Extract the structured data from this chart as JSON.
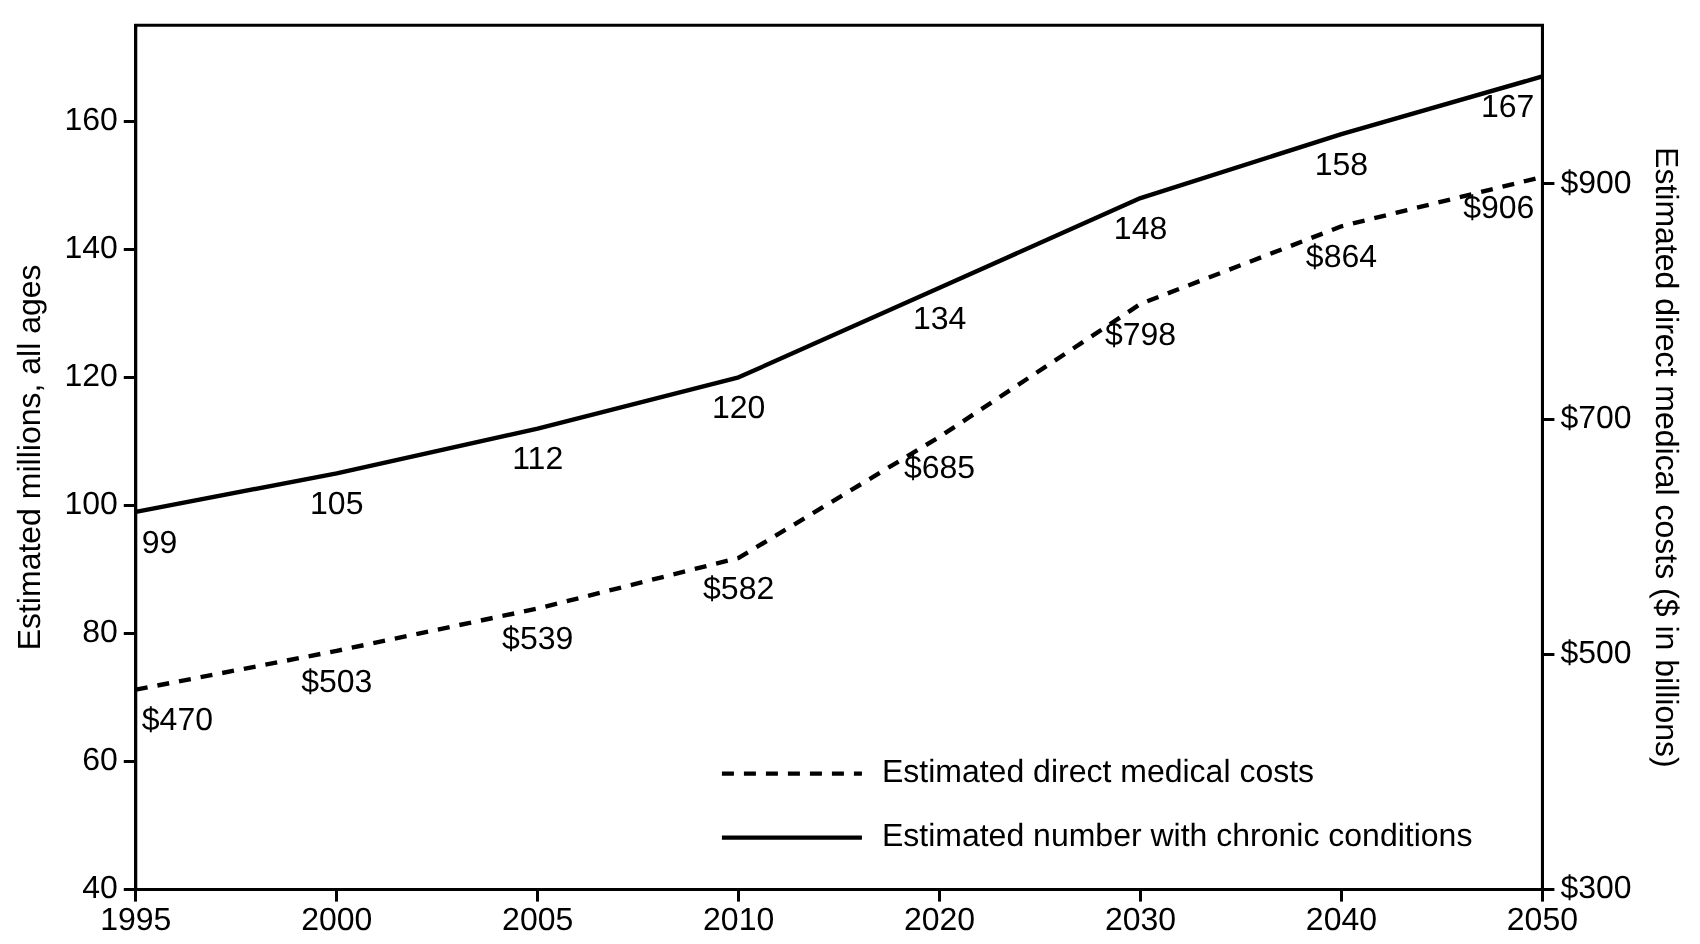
{
  "chart_data": {
    "type": "line",
    "xlabel": null,
    "ylabel": "Estimated millions, all ages",
    "y2label": "Estimated direct medical costs ($ in billions)",
    "categories": [
      "1995",
      "2000",
      "2005",
      "2010",
      "2020",
      "2030",
      "2040",
      "2050"
    ],
    "series": [
      {
        "name": "Estimated direct medical costs",
        "color": "#000000",
        "axis": "y2",
        "line_style": "dashed",
        "values": [
          470,
          503,
          539,
          582,
          685,
          798,
          864,
          906
        ],
        "value_labels": [
          "$470",
          "$503",
          "$539",
          "$582",
          "$685",
          "$798",
          "$864",
          "$906"
        ]
      },
      {
        "name": "Estimated number with chronic conditions",
        "color": "#000000",
        "line_style": "solid",
        "values": [
          99,
          105,
          112,
          120,
          134,
          148,
          158,
          167
        ],
        "value_labels": [
          "99",
          "105",
          "112",
          "120",
          "134",
          "148",
          "158",
          "167"
        ]
      }
    ],
    "ylim": [
      40,
      175
    ],
    "yticks": [
      40,
      60,
      80,
      100,
      120,
      140,
      160
    ],
    "y2lim": [
      300,
      1035
    ],
    "y2ticks": [
      {
        "value": 300,
        "label": "$300"
      },
      {
        "value": 500,
        "label": "$500"
      },
      {
        "value": 700,
        "label": "$700"
      },
      {
        "value": 900,
        "label": "$900"
      }
    ],
    "grid": false,
    "legend": "bottom right",
    "marker": "none"
  }
}
